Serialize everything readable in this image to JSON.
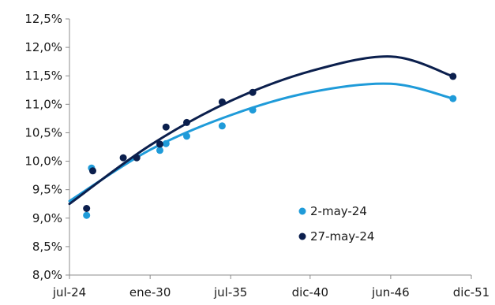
{
  "chart_data": {
    "type": "scatter",
    "xlabel": "",
    "ylabel": "",
    "x_tick_labels": [
      "jul-24",
      "ene-30",
      "jul-35",
      "dic-40",
      "jun-46",
      "dic-51"
    ],
    "x_ticks": [
      "2024-07-01",
      "2030-01-01",
      "2035-07-01",
      "2040-12-01",
      "2046-06-01",
      "2051-12-01"
    ],
    "xlim": [
      "2024-07-01",
      "2051-12-01"
    ],
    "y_tick_labels": [
      "8,0%",
      "8,5%",
      "9,0%",
      "9,5%",
      "10,0%",
      "10,5%",
      "11,0%",
      "11,5%",
      "12,0%",
      "12,5%"
    ],
    "ylim": [
      8.0,
      12.5
    ],
    "y_unit": "%",
    "grid": false,
    "legend_position": "bottom-right",
    "series": [
      {
        "name": "2-may-24",
        "color": "#1f9bd9",
        "points": [
          {
            "x": "2025-09-01",
            "y": 9.05
          },
          {
            "x": "2026-01-01",
            "y": 9.88
          },
          {
            "x": "2030-09-01",
            "y": 10.19
          },
          {
            "x": "2031-02-01",
            "y": 10.31
          },
          {
            "x": "2032-07-01",
            "y": 10.44
          },
          {
            "x": "2034-12-01",
            "y": 10.62
          },
          {
            "x": "2037-01-01",
            "y": 10.9
          },
          {
            "x": "2050-09-01",
            "y": 11.1
          }
        ],
        "trend": {
          "type": "polynomial",
          "points": [
            {
              "x": "2024-07-01",
              "y": 9.3
            },
            {
              "x": "2030-01-01",
              "y": 10.2
            },
            {
              "x": "2035-07-01",
              "y": 10.81
            },
            {
              "x": "2040-12-01",
              "y": 11.21
            },
            {
              "x": "2046-06-01",
              "y": 11.36
            },
            {
              "x": "2050-09-01",
              "y": 11.1
            }
          ]
        }
      },
      {
        "name": "27-may-24",
        "color": "#0b1f4d",
        "points": [
          {
            "x": "2025-09-01",
            "y": 9.17
          },
          {
            "x": "2026-02-01",
            "y": 9.83
          },
          {
            "x": "2028-03-01",
            "y": 10.06
          },
          {
            "x": "2029-02-01",
            "y": 10.06
          },
          {
            "x": "2030-09-01",
            "y": 10.3
          },
          {
            "x": "2031-02-01",
            "y": 10.6
          },
          {
            "x": "2032-07-01",
            "y": 10.68
          },
          {
            "x": "2034-12-01",
            "y": 11.04
          },
          {
            "x": "2037-01-01",
            "y": 11.21
          },
          {
            "x": "2050-09-01",
            "y": 11.49
          }
        ],
        "trend": {
          "type": "polynomial",
          "points": [
            {
              "x": "2024-07-01",
              "y": 9.25
            },
            {
              "x": "2030-01-01",
              "y": 10.28
            },
            {
              "x": "2035-07-01",
              "y": 11.06
            },
            {
              "x": "2040-12-01",
              "y": 11.58
            },
            {
              "x": "2046-06-01",
              "y": 11.84
            },
            {
              "x": "2050-09-01",
              "y": 11.49
            }
          ]
        }
      }
    ]
  }
}
